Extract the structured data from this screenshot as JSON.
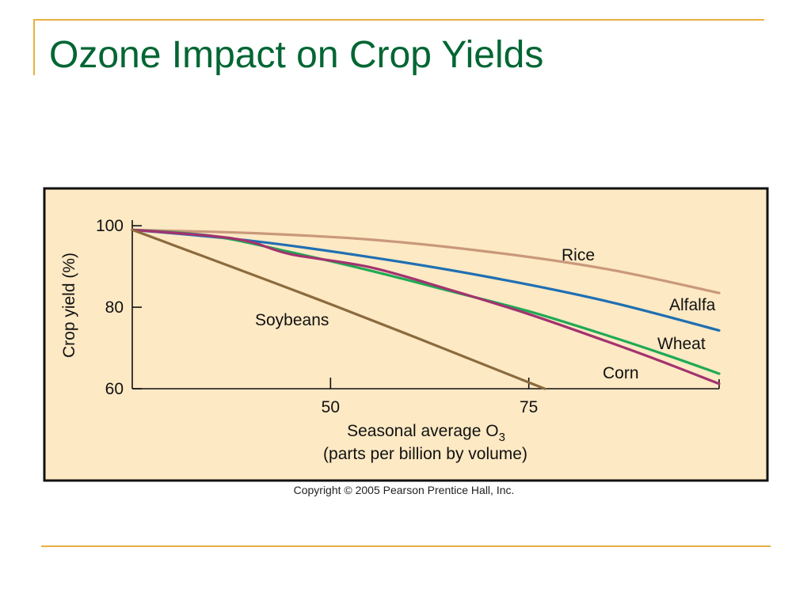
{
  "slide": {
    "title": "Ozone Impact on Crop Yields",
    "copyright": "Copyright © 2005 Pearson Prentice Hall, Inc."
  },
  "colors": {
    "title": "#006633",
    "rule": "#E8B040",
    "panel_background": "#FDE9C4",
    "panel_border": "#111111"
  },
  "chart_data": {
    "type": "line",
    "xlabel_line1": "Seasonal average O",
    "xlabel_subscript": "3",
    "xlabel_line2": "(parts per billion by volume)",
    "ylabel": "Crop yield (%)",
    "xlim": [
      25,
      99
    ],
    "ylim": [
      60,
      101
    ],
    "xticks": [
      50,
      75
    ],
    "yticks": [
      60,
      80,
      100
    ],
    "grid": false,
    "series": [
      {
        "name": "Rice",
        "color": "#C9987A",
        "x": [
          25,
          40,
          55,
          70,
          85,
          99
        ],
        "y": [
          99,
          98.2,
          96.6,
          93.6,
          89.3,
          83.5
        ]
      },
      {
        "name": "Alfalfa",
        "color": "#1F6FB2",
        "x": [
          25,
          40,
          55,
          70,
          85,
          99
        ],
        "y": [
          99,
          96.3,
          92.3,
          87.4,
          81.4,
          74.3
        ]
      },
      {
        "name": "Wheat",
        "color": "#1FAA55",
        "x": [
          25,
          35,
          45,
          55,
          65,
          75,
          85,
          92,
          99
        ],
        "y": [
          99,
          97.5,
          93.5,
          89,
          84,
          79,
          73,
          68.5,
          63.7
        ]
      },
      {
        "name": "Corn",
        "color": "#A3326F",
        "x": [
          25,
          35,
          40,
          45,
          55,
          65,
          75,
          85,
          92,
          99
        ],
        "y": [
          99,
          97.5,
          96,
          93,
          89.8,
          84.3,
          78.3,
          71.5,
          66.5,
          61.2
        ]
      },
      {
        "name": "Soybeans",
        "color": "#8B6A3E",
        "x": [
          25,
          51,
          77
        ],
        "y": [
          99,
          80,
          60
        ]
      }
    ],
    "labels": [
      {
        "text": "Rice",
        "series": "Rice"
      },
      {
        "text": "Alfalfa",
        "series": "Alfalfa"
      },
      {
        "text": "Wheat",
        "series": "Wheat"
      },
      {
        "text": "Corn",
        "series": "Corn"
      },
      {
        "text": "Soybeans",
        "series": "Soybeans"
      }
    ]
  }
}
